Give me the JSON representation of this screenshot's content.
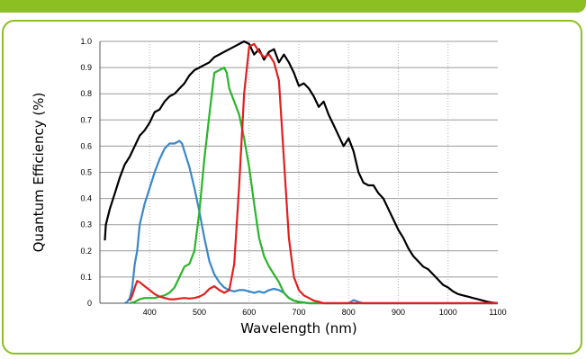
{
  "colors": {
    "accent": "#8cbf21"
  },
  "chart_data": {
    "type": "line",
    "title": "",
    "xlabel": "Wavelength (nm)",
    "ylabel": "Quantum Efficiency (%)",
    "xlim": [
      300,
      1100
    ],
    "ylim": [
      0,
      1.0
    ],
    "grid": true,
    "x_ticks": [
      400,
      500,
      600,
      700,
      800,
      900,
      1000,
      1100
    ],
    "y_ticks": [
      0,
      0.1,
      0.2,
      0.3,
      0.4,
      0.5,
      0.6,
      0.7,
      0.8,
      0.9,
      1.0
    ],
    "x_tick_labels": [
      "400",
      "500",
      "600",
      "700",
      "800",
      "900",
      "1000",
      "1100"
    ],
    "y_tick_labels": [
      "0",
      "0.1",
      "0.2",
      "0.3",
      "0.4",
      "0.5",
      "0.6",
      "0.7",
      "0.8",
      "0.9",
      "1.0"
    ],
    "series": [
      {
        "color": "#000000",
        "points": [
          [
            310,
            0.24
          ],
          [
            312,
            0.3
          ],
          [
            320,
            0.36
          ],
          [
            330,
            0.42
          ],
          [
            340,
            0.48
          ],
          [
            350,
            0.53
          ],
          [
            360,
            0.56
          ],
          [
            370,
            0.6
          ],
          [
            380,
            0.64
          ],
          [
            390,
            0.66
          ],
          [
            400,
            0.69
          ],
          [
            410,
            0.73
          ],
          [
            420,
            0.74
          ],
          [
            430,
            0.77
          ],
          [
            440,
            0.79
          ],
          [
            450,
            0.8
          ],
          [
            460,
            0.82
          ],
          [
            470,
            0.84
          ],
          [
            480,
            0.87
          ],
          [
            490,
            0.89
          ],
          [
            500,
            0.9
          ],
          [
            510,
            0.91
          ],
          [
            520,
            0.92
          ],
          [
            530,
            0.94
          ],
          [
            540,
            0.95
          ],
          [
            550,
            0.96
          ],
          [
            560,
            0.97
          ],
          [
            570,
            0.98
          ],
          [
            580,
            0.99
          ],
          [
            590,
            1.0
          ],
          [
            600,
            0.99
          ],
          [
            610,
            0.95
          ],
          [
            620,
            0.97
          ],
          [
            630,
            0.93
          ],
          [
            640,
            0.96
          ],
          [
            650,
            0.97
          ],
          [
            660,
            0.92
          ],
          [
            670,
            0.95
          ],
          [
            680,
            0.92
          ],
          [
            690,
            0.88
          ],
          [
            700,
            0.83
          ],
          [
            710,
            0.84
          ],
          [
            720,
            0.82
          ],
          [
            730,
            0.79
          ],
          [
            740,
            0.75
          ],
          [
            750,
            0.77
          ],
          [
            760,
            0.72
          ],
          [
            770,
            0.68
          ],
          [
            780,
            0.64
          ],
          [
            790,
            0.6
          ],
          [
            800,
            0.63
          ],
          [
            810,
            0.58
          ],
          [
            820,
            0.5
          ],
          [
            830,
            0.46
          ],
          [
            840,
            0.45
          ],
          [
            850,
            0.45
          ],
          [
            860,
            0.42
          ],
          [
            870,
            0.4
          ],
          [
            880,
            0.36
          ],
          [
            890,
            0.32
          ],
          [
            900,
            0.28
          ],
          [
            910,
            0.25
          ],
          [
            920,
            0.21
          ],
          [
            930,
            0.18
          ],
          [
            940,
            0.16
          ],
          [
            950,
            0.14
          ],
          [
            960,
            0.13
          ],
          [
            970,
            0.11
          ],
          [
            980,
            0.09
          ],
          [
            990,
            0.07
          ],
          [
            1000,
            0.06
          ],
          [
            1010,
            0.045
          ],
          [
            1020,
            0.035
          ],
          [
            1030,
            0.03
          ],
          [
            1040,
            0.025
          ],
          [
            1050,
            0.02
          ],
          [
            1060,
            0.015
          ],
          [
            1070,
            0.01
          ],
          [
            1080,
            0.005
          ],
          [
            1090,
            0.002
          ],
          [
            1100,
            0
          ]
        ]
      },
      {
        "color": "#3a87c8",
        "points": [
          [
            350,
            0
          ],
          [
            355,
            0.005
          ],
          [
            360,
            0.02
          ],
          [
            365,
            0.06
          ],
          [
            370,
            0.15
          ],
          [
            375,
            0.2
          ],
          [
            380,
            0.3
          ],
          [
            390,
            0.38
          ],
          [
            400,
            0.44
          ],
          [
            410,
            0.5
          ],
          [
            420,
            0.55
          ],
          [
            430,
            0.59
          ],
          [
            440,
            0.61
          ],
          [
            450,
            0.61
          ],
          [
            460,
            0.62
          ],
          [
            465,
            0.61
          ],
          [
            470,
            0.58
          ],
          [
            480,
            0.52
          ],
          [
            490,
            0.44
          ],
          [
            500,
            0.35
          ],
          [
            510,
            0.25
          ],
          [
            520,
            0.16
          ],
          [
            530,
            0.11
          ],
          [
            540,
            0.08
          ],
          [
            550,
            0.06
          ],
          [
            560,
            0.05
          ],
          [
            570,
            0.045
          ],
          [
            580,
            0.05
          ],
          [
            590,
            0.05
          ],
          [
            600,
            0.045
          ],
          [
            610,
            0.04
          ],
          [
            620,
            0.045
          ],
          [
            630,
            0.04
          ],
          [
            640,
            0.05
          ],
          [
            650,
            0.055
          ],
          [
            660,
            0.05
          ],
          [
            670,
            0.04
          ],
          [
            680,
            0.02
          ],
          [
            690,
            0.01
          ],
          [
            700,
            0.005
          ],
          [
            720,
            0
          ],
          [
            800,
            0
          ],
          [
            810,
            0.012
          ],
          [
            820,
            0.005
          ],
          [
            830,
            0
          ],
          [
            1100,
            0
          ]
        ]
      },
      {
        "color": "#2ab52a",
        "points": [
          [
            360,
            0
          ],
          [
            370,
            0.005
          ],
          [
            380,
            0.015
          ],
          [
            390,
            0.02
          ],
          [
            400,
            0.02
          ],
          [
            410,
            0.02
          ],
          [
            420,
            0.025
          ],
          [
            430,
            0.03
          ],
          [
            440,
            0.04
          ],
          [
            450,
            0.06
          ],
          [
            460,
            0.1
          ],
          [
            470,
            0.14
          ],
          [
            480,
            0.15
          ],
          [
            490,
            0.2
          ],
          [
            500,
            0.35
          ],
          [
            510,
            0.55
          ],
          [
            520,
            0.72
          ],
          [
            530,
            0.88
          ],
          [
            540,
            0.89
          ],
          [
            550,
            0.9
          ],
          [
            555,
            0.88
          ],
          [
            560,
            0.82
          ],
          [
            570,
            0.77
          ],
          [
            580,
            0.72
          ],
          [
            590,
            0.63
          ],
          [
            600,
            0.52
          ],
          [
            610,
            0.38
          ],
          [
            620,
            0.25
          ],
          [
            630,
            0.18
          ],
          [
            640,
            0.14
          ],
          [
            650,
            0.11
          ],
          [
            660,
            0.08
          ],
          [
            670,
            0.04
          ],
          [
            680,
            0.02
          ],
          [
            690,
            0.01
          ],
          [
            700,
            0.005
          ],
          [
            720,
            0
          ],
          [
            1100,
            0
          ]
        ]
      },
      {
        "color": "#e02020",
        "points": [
          [
            360,
            0.01
          ],
          [
            365,
            0.03
          ],
          [
            370,
            0.06
          ],
          [
            375,
            0.085
          ],
          [
            380,
            0.08
          ],
          [
            390,
            0.065
          ],
          [
            400,
            0.05
          ],
          [
            410,
            0.035
          ],
          [
            420,
            0.025
          ],
          [
            430,
            0.02
          ],
          [
            440,
            0.015
          ],
          [
            450,
            0.015
          ],
          [
            460,
            0.018
          ],
          [
            470,
            0.02
          ],
          [
            480,
            0.018
          ],
          [
            490,
            0.02
          ],
          [
            500,
            0.025
          ],
          [
            510,
            0.035
          ],
          [
            520,
            0.055
          ],
          [
            530,
            0.065
          ],
          [
            540,
            0.05
          ],
          [
            550,
            0.04
          ],
          [
            560,
            0.05
          ],
          [
            570,
            0.15
          ],
          [
            580,
            0.45
          ],
          [
            590,
            0.8
          ],
          [
            600,
            0.98
          ],
          [
            610,
            0.99
          ],
          [
            620,
            0.96
          ],
          [
            630,
            0.94
          ],
          [
            640,
            0.95
          ],
          [
            650,
            0.92
          ],
          [
            660,
            0.85
          ],
          [
            670,
            0.55
          ],
          [
            680,
            0.25
          ],
          [
            690,
            0.1
          ],
          [
            700,
            0.05
          ],
          [
            710,
            0.03
          ],
          [
            720,
            0.02
          ],
          [
            730,
            0.01
          ],
          [
            740,
            0.005
          ],
          [
            750,
            0
          ],
          [
            1100,
            0
          ]
        ]
      }
    ]
  }
}
